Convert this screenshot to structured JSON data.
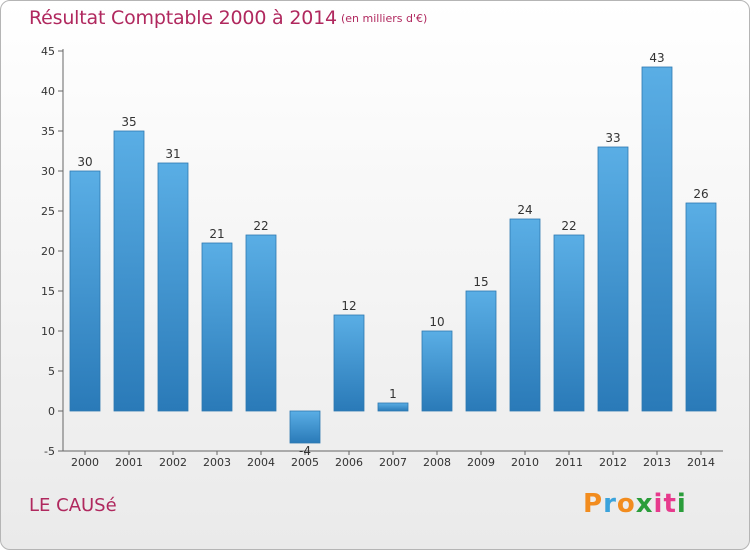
{
  "header": {
    "title": "Résultat Comptable 2000 à 2014",
    "subtitle": "(en milliers d'€)"
  },
  "footer": {
    "commune": "LE CAUSé",
    "logo_letters": [
      "P",
      "r",
      "o",
      "x",
      "i",
      "t",
      "i"
    ],
    "logo_colors": [
      "#f28c1e",
      "#3aa3dc",
      "#f28c1e",
      "#2a9d3a",
      "#e73a8d",
      "#e73a8d",
      "#2a9d3a"
    ]
  },
  "chart_data": {
    "type": "bar",
    "categories": [
      "2000",
      "2001",
      "2002",
      "2003",
      "2004",
      "2005",
      "2006",
      "2007",
      "2008",
      "2009",
      "2010",
      "2011",
      "2012",
      "2013",
      "2014"
    ],
    "values": [
      30,
      35,
      31,
      21,
      22,
      -4,
      12,
      1,
      10,
      15,
      24,
      22,
      33,
      43,
      26
    ],
    "ylim": [
      -5,
      45
    ],
    "yticks": [
      -5,
      0,
      5,
      10,
      15,
      20,
      25,
      30,
      35,
      40,
      45
    ],
    "grid": false,
    "bar_color_top": "#5aaee5",
    "bar_color_bottom": "#2a7ab8"
  }
}
